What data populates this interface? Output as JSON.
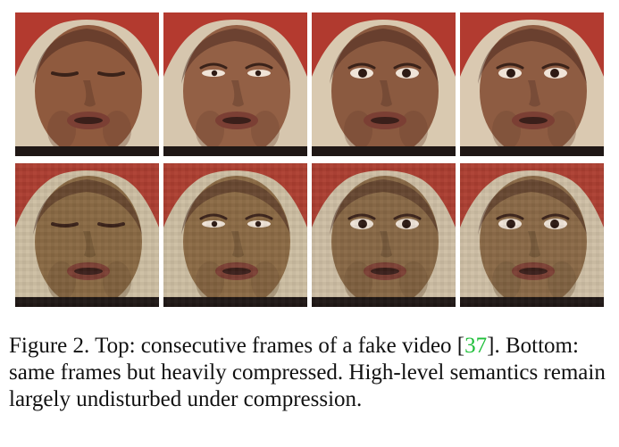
{
  "figure": {
    "frames": [
      {
        "label": "top-frame-1",
        "eye_state": "closed",
        "colors": {
          "skin": "#8f5a3e",
          "skin_shadow": "#6d4330",
          "hair": "#b33a2f",
          "background": "#d7c8b0"
        }
      },
      {
        "label": "top-frame-2",
        "eye_state": "half-open",
        "colors": {
          "skin": "#936045",
          "skin_shadow": "#6f4632",
          "hair": "#b43a2f",
          "background": "#d6c6ae"
        }
      },
      {
        "label": "top-frame-3",
        "eye_state": "open",
        "colors": {
          "skin": "#8b5a40",
          "skin_shadow": "#6c4331",
          "hair": "#b13a2f",
          "background": "#d9c9b0"
        }
      },
      {
        "label": "top-frame-4",
        "eye_state": "open",
        "colors": {
          "skin": "#8e5c42",
          "skin_shadow": "#6d4432",
          "hair": "#b23b30",
          "background": "#dac9b1"
        }
      },
      {
        "label": "bottom-frame-1",
        "eye_state": "closed",
        "colors": {
          "skin": "#8a6a44",
          "skin_shadow": "#6d5133",
          "hair": "#ad3e31",
          "background": "#cdbfa3"
        }
      },
      {
        "label": "bottom-frame-2",
        "eye_state": "half-open",
        "colors": {
          "skin": "#8c6b45",
          "skin_shadow": "#6f5334",
          "hair": "#ae3f31",
          "background": "#cdbfa3"
        }
      },
      {
        "label": "bottom-frame-3",
        "eye_state": "open",
        "colors": {
          "skin": "#896946",
          "skin_shadow": "#6c5135",
          "hair": "#ac3e31",
          "background": "#cebfa5"
        }
      },
      {
        "label": "bottom-frame-4",
        "eye_state": "open",
        "colors": {
          "skin": "#8b6a47",
          "skin_shadow": "#6d5236",
          "hair": "#ad3f32",
          "background": "#cfc0a6"
        }
      }
    ]
  },
  "caption": {
    "prefix": "Figure 2. Top: consecutive frames of a fake video [",
    "citation": "37",
    "suffix": "]. Bottom: same frames but heavily compressed. High-level semantics remain largely undisturbed under compression."
  },
  "colors": {
    "citation": "#1fbf3a",
    "text": "#111111"
  }
}
